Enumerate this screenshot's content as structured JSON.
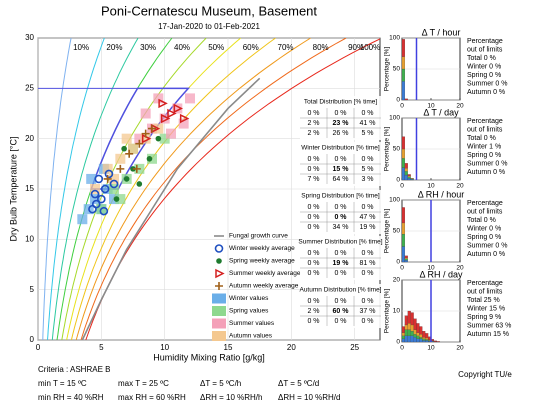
{
  "chart_data": [
    {
      "type": "scatter",
      "title": "Poni-Cernatescu Museum, Basement",
      "subtitle": "17-Jan-2020 to 01-Feb-2021",
      "x_label": "Humidity Mixing Ratio [g/kg]",
      "y_label": "Dry Bulb Temperature [°C]",
      "xlim": [
        0,
        27
      ],
      "ylim": [
        0,
        30
      ],
      "xticks": [
        0,
        5,
        10,
        15,
        20,
        25
      ],
      "yticks": [
        0,
        5,
        10,
        15,
        20,
        25,
        30
      ],
      "grid": true,
      "rh_curves": [
        {
          "value": 10,
          "label": "10%",
          "color": "#7fb2f0"
        },
        {
          "value": 20,
          "label": "20%",
          "color": "#33c8e8"
        },
        {
          "value": 30,
          "label": "30%",
          "color": "#2cc9a0"
        },
        {
          "value": 40,
          "label": "40%",
          "color": "#3fcf3f"
        },
        {
          "value": 50,
          "label": "50%",
          "color": "#a6d92a"
        },
        {
          "value": 60,
          "label": "60%",
          "color": "#e8e21c"
        },
        {
          "value": 70,
          "label": "70%",
          "color": "#f0c419"
        },
        {
          "value": 80,
          "label": "80%",
          "color": "#f09a1c"
        },
        {
          "value": 90,
          "label": "90%",
          "color": "#f06a1c"
        },
        {
          "value": 100,
          "label": "100%",
          "color": "#e8281c"
        }
      ],
      "comfort_zone": {
        "t": [
          15,
          25
        ],
        "rh": [
          40,
          60
        ],
        "color": "#5050e0"
      },
      "series": [
        {
          "name": "Fungal growth curve",
          "marker": "line",
          "color": "#8a8a8a",
          "x": [
            3.5,
            5,
            7,
            9,
            11,
            13,
            15,
            17.5
          ],
          "y": [
            0,
            4,
            9,
            13,
            17,
            20,
            23,
            26
          ]
        },
        {
          "name": "Winter weekly average",
          "marker": "circle",
          "color": "#1f4fc0",
          "x": [
            4.3,
            4.6,
            5.0,
            5.3,
            4.8,
            5.6,
            6.0,
            5.2,
            4.5
          ],
          "y": [
            13,
            13.5,
            14,
            15,
            16,
            16.5,
            15.5,
            12.8,
            14.5
          ]
        },
        {
          "name": "Spring weekly average",
          "marker": "dot",
          "color": "#1e7a2e",
          "x": [
            6.2,
            7.0,
            7.5,
            8.0,
            8.8,
            6.8,
            9.5
          ],
          "y": [
            14,
            16,
            17,
            15.5,
            18,
            19,
            20
          ]
        },
        {
          "name": "Summer weekly average",
          "marker": "triangle",
          "color": "#d42020",
          "x": [
            8.5,
            9.2,
            10,
            10.5,
            11,
            11.5,
            9.8
          ],
          "y": [
            20,
            21,
            22,
            22.5,
            23,
            22,
            23.5
          ]
        },
        {
          "name": "Autumn weekly average",
          "marker": "plus",
          "color": "#a0601a",
          "x": [
            5.5,
            6.5,
            7.2,
            8.0,
            8.5,
            9.0,
            7.8
          ],
          "y": [
            16,
            17,
            18.5,
            19.5,
            20.5,
            21,
            17
          ]
        },
        {
          "name": "Winter values",
          "marker": "square",
          "color": "#6aaee8",
          "x": [
            3.5,
            4,
            4.5,
            5,
            5.5,
            6,
            4.2,
            5.2
          ],
          "y": [
            12,
            13,
            14,
            13,
            15,
            14,
            16,
            17
          ]
        },
        {
          "name": "Spring values",
          "marker": "square",
          "color": "#8ed88e",
          "x": [
            5,
            6,
            7,
            8,
            9,
            10,
            7.5,
            6.5
          ],
          "y": [
            13,
            15,
            16,
            17,
            18,
            20,
            19,
            14
          ]
        },
        {
          "name": "Summer values",
          "marker": "square",
          "color": "#f4a0b8",
          "x": [
            8,
            9,
            10,
            11,
            12,
            9.5,
            10.5,
            11.5,
            8.5
          ],
          "y": [
            20,
            21,
            22,
            23,
            24,
            24,
            20.5,
            21.5,
            22.5
          ]
        },
        {
          "name": "Autumn values",
          "marker": "square",
          "color": "#f4c890",
          "x": [
            4.5,
            5.5,
            6.5,
            7.5,
            8.5,
            9.5,
            6,
            7
          ],
          "y": [
            15,
            17,
            18,
            19,
            20,
            21,
            16,
            20
          ]
        }
      ]
    },
    {
      "type": "histogram",
      "title": "Δ T / hour",
      "y_label": "Percentage [%]",
      "xlim": [
        0,
        20
      ],
      "ylim": [
        0,
        100
      ],
      "xticks": [
        0,
        10,
        20
      ],
      "yticks": [
        0,
        50,
        100
      ],
      "limit": 5,
      "limit_color": "#4040e0",
      "bins": [
        0,
        1,
        2
      ],
      "series": [
        {
          "name": "Winter",
          "color": "#3a7bd5",
          "values": [
            30,
            0
          ]
        },
        {
          "name": "Spring",
          "color": "#3fb04f",
          "values": [
            20,
            0
          ]
        },
        {
          "name": "Autumn",
          "color": "#e8a030",
          "values": [
            20,
            0
          ]
        },
        {
          "name": "Summer",
          "color": "#d83030",
          "values": [
            28,
            2
          ]
        }
      ],
      "note": [
        "Percentage",
        "out of limits"
      ],
      "stats": [
        {
          "text": "Total 0 %",
          "color": "#000000"
        },
        {
          "text": "Winter 0 %",
          "color": "#1f4fc0"
        },
        {
          "text": "Spring 0 %",
          "color": "#1e7a2e"
        },
        {
          "text": "Summer 0 %",
          "color": "#d42020"
        },
        {
          "text": "Autumn 0 %",
          "color": "#a0601a"
        }
      ]
    },
    {
      "type": "histogram",
      "title": "Δ T / day",
      "y_label": "Percentage [%]",
      "xlim": [
        0,
        20
      ],
      "ylim": [
        0,
        100
      ],
      "xticks": [
        0,
        10,
        20
      ],
      "yticks": [
        0,
        50,
        100
      ],
      "limit": 5,
      "limit_color": "#4040e0",
      "bins": [
        0,
        1,
        2,
        3,
        4,
        5
      ],
      "series": [
        {
          "name": "Winter",
          "color": "#3a7bd5",
          "values": [
            20,
            8,
            3,
            1,
            0
          ]
        },
        {
          "name": "Spring",
          "color": "#3fb04f",
          "values": [
            15,
            6,
            2,
            1,
            0
          ]
        },
        {
          "name": "Autumn",
          "color": "#e8a030",
          "values": [
            15,
            5,
            2,
            1,
            0
          ]
        },
        {
          "name": "Summer",
          "color": "#d83030",
          "values": [
            20,
            8,
            2,
            0,
            0
          ]
        }
      ],
      "note": [
        "Percentage",
        "out of limits"
      ],
      "stats": [
        {
          "text": "Total 0 %",
          "color": "#000000"
        },
        {
          "text": "Winter 1 %",
          "color": "#1f4fc0"
        },
        {
          "text": "Spring 0 %",
          "color": "#1e7a2e"
        },
        {
          "text": "Summer 0 %",
          "color": "#d42020"
        },
        {
          "text": "Autumn 0 %",
          "color": "#a0601a"
        }
      ]
    },
    {
      "type": "histogram",
      "title": "Δ RH / hour",
      "y_label": "Percentage [%]",
      "xlim": [
        0,
        20
      ],
      "ylim": [
        0,
        100
      ],
      "xticks": [
        0,
        10,
        20
      ],
      "yticks": [
        0,
        50,
        100
      ],
      "limit": 10,
      "limit_color": "#4040e0",
      "bins": [
        0,
        1,
        2
      ],
      "series": [
        {
          "name": "Winter",
          "color": "#3a7bd5",
          "values": [
            25,
            3
          ]
        },
        {
          "name": "Spring",
          "color": "#3fb04f",
          "values": [
            20,
            2
          ]
        },
        {
          "name": "Autumn",
          "color": "#e8a030",
          "values": [
            18,
            2
          ]
        },
        {
          "name": "Summer",
          "color": "#d83030",
          "values": [
            25,
            3
          ]
        }
      ],
      "note": [
        "Percentage",
        "out of limits"
      ],
      "stats": [
        {
          "text": "Total 0 %",
          "color": "#000000"
        },
        {
          "text": "Winter 0 %",
          "color": "#1f4fc0"
        },
        {
          "text": "Spring 0 %",
          "color": "#1e7a2e"
        },
        {
          "text": "Summer 0 %",
          "color": "#d42020"
        },
        {
          "text": "Autumn 0 %",
          "color": "#a0601a"
        }
      ]
    },
    {
      "type": "histogram",
      "title": "Δ RH / day",
      "y_label": "Percentage [%]",
      "xlim": [
        0,
        20
      ],
      "ylim": [
        0,
        20
      ],
      "xticks": [
        0,
        10,
        20
      ],
      "yticks": [
        0,
        10,
        20
      ],
      "limit": 10,
      "limit_color": "#4040e0",
      "bins": [
        0,
        1,
        2,
        3,
        4,
        5,
        6,
        7,
        8,
        9,
        10,
        11,
        12,
        13
      ],
      "series": [
        {
          "name": "Winter",
          "color": "#3a7bd5",
          "values": [
            1,
            2,
            2,
            2,
            1.5,
            1,
            1,
            0.5,
            0.5,
            0.3,
            0.2,
            0.1,
            0
          ]
        },
        {
          "name": "Spring",
          "color": "#3fb04f",
          "values": [
            1,
            2,
            2,
            1.5,
            1,
            1,
            0.5,
            0.5,
            0.3,
            0.2,
            0.1,
            0,
            0
          ]
        },
        {
          "name": "Autumn",
          "color": "#e8a030",
          "values": [
            1,
            1.5,
            2,
            2,
            1.5,
            1,
            1,
            0.5,
            0.5,
            0.2,
            0.1,
            0,
            0
          ]
        },
        {
          "name": "Summer",
          "color": "#d83030",
          "values": [
            2,
            3,
            4,
            4,
            3.5,
            3,
            2.5,
            2,
            1.5,
            1,
            0.5,
            0.3,
            0.2
          ]
        }
      ],
      "note": [
        "Percentage",
        "out of limits"
      ],
      "stats": [
        {
          "text": "Total 25 %",
          "color": "#000000"
        },
        {
          "text": "Winter 15 %",
          "color": "#1f4fc0"
        },
        {
          "text": "Spring 9 %",
          "color": "#1e7a2e"
        },
        {
          "text": "Summer 63 %",
          "color": "#d42020"
        },
        {
          "text": "Autumn 15 %",
          "color": "#a0601a"
        }
      ]
    }
  ],
  "tables": [
    {
      "title": "Total Distribution [% time]",
      "color": "#000000",
      "rows": [
        [
          "0 %",
          "0 %",
          "0 %"
        ],
        [
          "2 %",
          "23 %",
          "41 %"
        ],
        [
          "2 %",
          "26 %",
          "5 %"
        ]
      ]
    },
    {
      "title": "Winter Distribution [% time]",
      "color": "#1f4fc0",
      "rows": [
        [
          "0 %",
          "0 %",
          "0 %"
        ],
        [
          "0 %",
          "15 %",
          "5 %"
        ],
        [
          "7 %",
          "64 %",
          "3 %"
        ]
      ]
    },
    {
      "title": "Spring Distribution [% time]",
      "color": "#1e7a2e",
      "rows": [
        [
          "0 %",
          "0 %",
          "0 %"
        ],
        [
          "0 %",
          "0 %",
          "47 %"
        ],
        [
          "0 %",
          "34 %",
          "19 %"
        ]
      ]
    },
    {
      "title": "Summer Distribution [% time]",
      "color": "#d42020",
      "rows": [
        [
          "0 %",
          "0 %",
          "0 %"
        ],
        [
          "0 %",
          "19 %",
          "81 %"
        ],
        [
          "0 %",
          "0 %",
          "0 %"
        ]
      ]
    },
    {
      "title": "Autumn Distribution [% time]",
      "color": "#a0601a",
      "rows": [
        [
          "0 %",
          "0 %",
          "0 %"
        ],
        [
          "2 %",
          "60 %",
          "37 %"
        ],
        [
          "0 %",
          "0 %",
          "0 %"
        ]
      ]
    }
  ],
  "criteria": {
    "title": "Criteria : ASHRAE B",
    "items": [
      "min T = 15 ºC",
      "max T = 25 ºC",
      "ΔT = 5 ºC/h",
      "ΔT = 5 ºC/d",
      "min RH = 40 %RH",
      "max RH = 60 %RH",
      "ΔRH = 10 %RH/h",
      "ΔRH = 10 %RH/d"
    ]
  },
  "copyright": "Copyright TU/e"
}
